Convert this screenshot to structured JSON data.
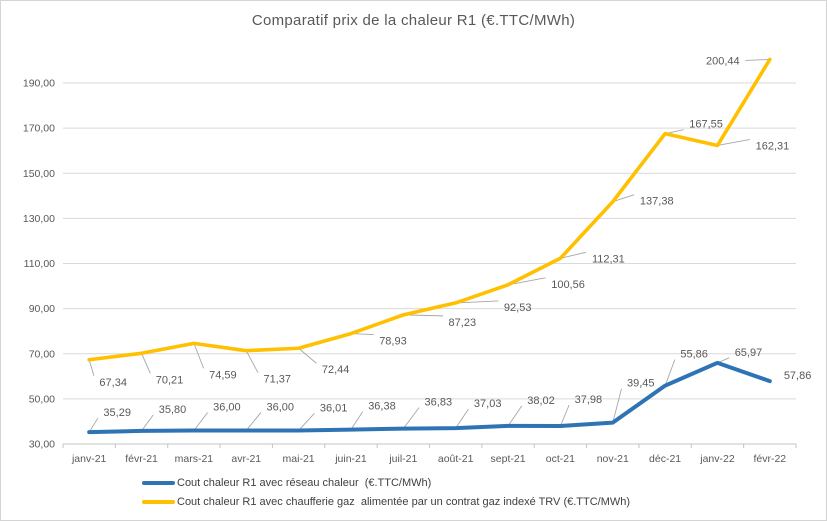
{
  "chart_data": {
    "type": "line",
    "title": "Comparatif prix de la chaleur R1 (€.TTC/MWh)",
    "categories": [
      "janv-21",
      "févr-21",
      "mars-21",
      "avr-21",
      "mai-21",
      "juin-21",
      "juil-21",
      "août-21",
      "sept-21",
      "oct-21",
      "nov-21",
      "déc-21",
      "janv-22",
      "févr-22"
    ],
    "series": [
      {
        "name": "Cout chaleur R1 avec réseau chaleur  (€.TTC/MWh)",
        "color": "#2E74B5",
        "values": [
          35.29,
          35.8,
          36.0,
          36.0,
          36.01,
          36.38,
          36.83,
          37.03,
          38.02,
          37.98,
          39.45,
          55.86,
          65.97,
          57.86
        ],
        "labels": [
          "35,29",
          "35,80",
          "36,00",
          "36,00",
          "36,01",
          "36,38",
          "36,83",
          "37,03",
          "38,02",
          "37,98",
          "39,45",
          "55,86",
          "65,97",
          "57,86"
        ]
      },
      {
        "name": "Cout chaleur R1 avec chaufferie gaz  alimentée par un contrat gaz indexé TRV (€.TTC/MWh)",
        "color": "#FFC000",
        "values": [
          67.34,
          70.21,
          74.59,
          71.37,
          72.44,
          78.93,
          87.23,
          92.53,
          100.56,
          112.31,
          137.38,
          167.55,
          162.31,
          200.44
        ],
        "labels": [
          "67,34",
          "70,21",
          "74,59",
          "71,37",
          "72,44",
          "78,93",
          "87,23",
          "92,53",
          "100,56",
          "112,31",
          "137,38",
          "167,55",
          "162,31",
          "200,44"
        ]
      }
    ],
    "y_axis": {
      "ticks": [
        "30,00",
        "50,00",
        "70,00",
        "90,00",
        "110,00",
        "130,00",
        "150,00",
        "170,00",
        "190,00"
      ],
      "tick_values": [
        30,
        50,
        70,
        90,
        110,
        130,
        150,
        170,
        190
      ],
      "min": 30,
      "max": 202
    },
    "x_axis": {
      "label": ""
    },
    "grid": true,
    "legend_position": "bottom-left",
    "colors": {
      "grid": "#D9D9D9",
      "axis": "#C3C3C3",
      "text": "#595959",
      "leader": "#A6A6A6"
    }
  }
}
